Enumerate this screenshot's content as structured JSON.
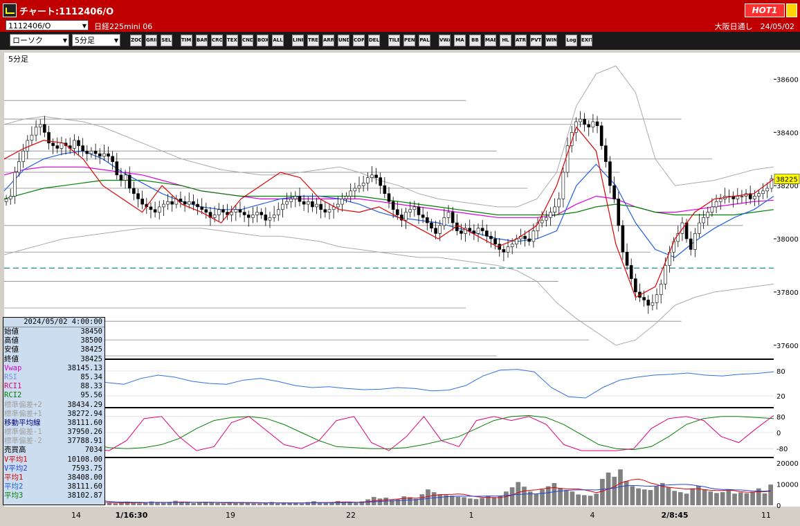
{
  "window": {
    "title": "チャート:1112406/O",
    "hot_label": "HOT1"
  },
  "symbol_bar": {
    "symbol": "1112406/O",
    "instrument": "日経225mini 06",
    "exchange": "大阪日通し",
    "date": "24/05/02"
  },
  "toolbar": {
    "chart_type": "ローソク",
    "period": "5分足",
    "buttons": [
      "ZOOM",
      "GRID",
      "SEL",
      "TIME",
      "BAR",
      "CROSS",
      "TEXT",
      "CNDL",
      "BOX",
      "ALL",
      "LINE",
      "TREND",
      "ARROW",
      "UNDO",
      "COPY",
      "DEL",
      "TILE",
      "PEN",
      "PAL",
      "VWAP",
      "MA",
      "BB",
      "MAE",
      "HL",
      "ATR",
      "PVT",
      "WIN",
      "Log",
      "EXIT"
    ]
  },
  "chart_data": {
    "type": "candlestick",
    "period_label": "5分足",
    "price_axis": {
      "ticks": [
        37600,
        37800,
        38000,
        38200,
        38400,
        38600
      ],
      "range": [
        37550,
        38700
      ],
      "last_price": "38225"
    },
    "x_ticks": [
      "14",
      "1/16:30",
      "19",
      "22",
      "1",
      "4",
      "2/8:45",
      "11"
    ],
    "close": [
      38150,
      38160,
      38250,
      38290,
      38330,
      38370,
      38390,
      38420,
      38430,
      38400,
      38360,
      38350,
      38340,
      38360,
      38350,
      38340,
      38370,
      38350,
      38330,
      38320,
      38330,
      38320,
      38310,
      38320,
      38310,
      38290,
      38240,
      38220,
      38240,
      38190,
      38170,
      38150,
      38130,
      38120,
      38110,
      38100,
      38120,
      38130,
      38140,
      38130,
      38150,
      38140,
      38130,
      38140,
      38130,
      38120,
      38110,
      38100,
      38080,
      38090,
      38110,
      38100,
      38090,
      38100,
      38110,
      38100,
      38090,
      38080,
      38090,
      38100,
      38090,
      38070,
      38080,
      38090,
      38110,
      38130,
      38140,
      38150,
      38160,
      38140,
      38130,
      38140,
      38120,
      38130,
      38110,
      38100,
      38110,
      38120,
      38130,
      38150,
      38160,
      38180,
      38190,
      38200,
      38210,
      38230,
      38240,
      38230,
      38200,
      38170,
      38140,
      38110,
      38090,
      38070,
      38100,
      38110,
      38120,
      38090,
      38080,
      38060,
      38040,
      38020,
      38050,
      38080,
      38100,
      38060,
      38030,
      38020,
      38040,
      38030,
      38020,
      38040,
      38030,
      38010,
      38000,
      37980,
      37960,
      37950,
      37970,
      37980,
      38000,
      38010,
      38000,
      37990,
      38030,
      38060,
      38070,
      38080,
      38100,
      38120,
      38150,
      38250,
      38350,
      38400,
      38440,
      38450,
      38430,
      38420,
      38440,
      38425,
      38350,
      38290,
      38200,
      38150,
      38050,
      37950,
      37900,
      37850,
      37800,
      37780,
      37770,
      37750,
      37760,
      37790,
      37830,
      37900,
      37950,
      37990,
      38020,
      38060,
      38000,
      37960,
      38020,
      38060,
      38080,
      38100,
      38120,
      38140,
      38150,
      38160,
      38160,
      38150,
      38160,
      38160,
      38170,
      38150,
      38160,
      38170,
      38180,
      38190,
      38225
    ],
    "ma1": [
      38300,
      38340,
      38370,
      38360,
      38300,
      38200,
      38150,
      38100,
      38200,
      38130,
      38100,
      38060,
      38150,
      38200,
      38250,
      38230,
      38150,
      38110,
      38100,
      38120,
      38080,
      38040,
      38000,
      38050,
      38010,
      37970,
      38000,
      38050,
      38200,
      38420,
      38330,
      37980,
      37780,
      37820,
      38000,
      38100,
      38150,
      38160,
      38170,
      38225
    ],
    "ma2": [
      38180,
      38260,
      38300,
      38320,
      38330,
      38300,
      38250,
      38210,
      38170,
      38140,
      38120,
      38110,
      38110,
      38130,
      38150,
      38160,
      38160,
      38150,
      38130,
      38100,
      38080,
      38070,
      38060,
      38040,
      38020,
      38000,
      37990,
      38000,
      38030,
      38200,
      38280,
      38200,
      38060,
      37960,
      37930,
      37990,
      38040,
      38080,
      38110,
      38160
    ],
    "ma3": [
      38150,
      38170,
      38190,
      38200,
      38210,
      38220,
      38220,
      38220,
      38210,
      38200,
      38180,
      38170,
      38160,
      38160,
      38160,
      38160,
      38160,
      38160,
      38160,
      38150,
      38140,
      38130,
      38120,
      38110,
      38100,
      38090,
      38090,
      38090,
      38090,
      38100,
      38120,
      38130,
      38120,
      38100,
      38090,
      38090,
      38090,
      38090,
      38100,
      38110
    ],
    "vwap": [
      38240,
      38260,
      38270,
      38270,
      38270,
      38260,
      38250,
      38240,
      38220,
      38200,
      38180,
      38170,
      38160,
      38150,
      38150,
      38150,
      38150,
      38150,
      38150,
      38140,
      38130,
      38120,
      38110,
      38100,
      38090,
      38080,
      38080,
      38080,
      38090,
      38130,
      38160,
      38150,
      38120,
      38100,
      38100,
      38110,
      38120,
      38130,
      38140,
      38145
    ],
    "bb_upper": [
      38430,
      38450,
      38460,
      38450,
      38440,
      38420,
      38390,
      38360,
      38330,
      38300,
      38280,
      38260,
      38250,
      38240,
      38240,
      38250,
      38260,
      38270,
      38250,
      38220,
      38200,
      38170,
      38150,
      38140,
      38130,
      38120,
      38120,
      38150,
      38250,
      38500,
      38620,
      38650,
      38550,
      38300,
      38200,
      38210,
      38220,
      38240,
      38260,
      38270
    ],
    "bb_lower": [
      37940,
      37960,
      37980,
      38000,
      38010,
      38020,
      38030,
      38040,
      38040,
      38040,
      38040,
      38030,
      38020,
      38010,
      38010,
      38000,
      37990,
      37970,
      37960,
      37950,
      37940,
      37930,
      37930,
      37920,
      37910,
      37900,
      37880,
      37840,
      37760,
      37700,
      37650,
      37600,
      37620,
      37680,
      37750,
      37780,
      37800,
      37810,
      37820,
      37830
    ],
    "horizontal_lines": [
      38520,
      38450,
      38430,
      38330,
      38300,
      38250,
      38190,
      38050,
      37950,
      37840,
      37740,
      37690,
      37620,
      37560
    ],
    "dashed_line": 37890,
    "oscillator1": {
      "levels": [
        80.0,
        20.0
      ],
      "rsi": [
        30,
        29,
        35,
        45,
        55,
        60,
        52,
        48,
        62,
        70,
        65,
        55,
        50,
        48,
        58,
        62,
        55,
        45,
        40,
        42,
        38,
        35,
        36,
        40,
        38,
        32,
        34,
        45,
        68,
        82,
        84,
        78,
        40,
        18,
        15,
        40,
        58,
        65,
        70,
        72,
        75,
        70,
        68,
        72,
        74,
        78
      ]
    },
    "oscillator2": {
      "levels": [
        80.0,
        0.0,
        -80.0
      ],
      "rci1": [
        -60,
        -20,
        60,
        80,
        10,
        -80,
        -90,
        -40,
        70,
        80,
        -20,
        -90,
        -70,
        50,
        80,
        10,
        -60,
        -80,
        -40,
        60,
        80,
        -50,
        -90,
        -20,
        80,
        -40,
        -70,
        60,
        80,
        60,
        80,
        40,
        -60,
        -90,
        -90,
        -90,
        -80,
        20,
        70,
        80,
        60,
        -20,
        -50,
        20,
        85
      ],
      "rci2": [
        -70,
        -75,
        -70,
        -60,
        -50,
        -60,
        -75,
        -80,
        -75,
        -60,
        -30,
        20,
        60,
        75,
        80,
        70,
        40,
        0,
        -40,
        -70,
        -75,
        -80,
        -80,
        -75,
        -60,
        -40,
        -20,
        20,
        60,
        80,
        85,
        75,
        40,
        -10,
        -60,
        -80,
        -85,
        -70,
        -20,
        40,
        70,
        80,
        80,
        75,
        70
      ]
    },
    "volume": {
      "ticks": [
        0,
        10000,
        20000
      ],
      "bars": [
        2500,
        4500,
        6500,
        3500,
        2500,
        2000,
        2500,
        1500,
        2000,
        1800,
        1500,
        1400,
        1200,
        1500,
        1800,
        1200,
        1000,
        1100,
        900,
        1300,
        1700,
        1200,
        900,
        1400,
        1800,
        1300,
        1100,
        1600,
        2100,
        1500,
        1200,
        1000,
        1300,
        1500,
        1200,
        1000,
        900,
        1100,
        1300,
        1500,
        1100,
        900,
        800,
        1200,
        1500,
        900,
        1100,
        1300,
        1000,
        800,
        1500,
        1900,
        1300,
        1100,
        1500,
        2000,
        1600,
        1300,
        1100,
        1800,
        2800,
        3900,
        3200,
        3600,
        2500,
        2800,
        4200,
        3800,
        3000,
        5200,
        7500,
        6200,
        5200,
        4800,
        4500,
        4000,
        3800,
        3200,
        2900,
        3500,
        4200,
        3800,
        4500,
        6500,
        8500,
        11000,
        8800,
        6500,
        5400,
        7500,
        9000,
        10500,
        8200,
        7200,
        6500,
        5100,
        4800,
        4500,
        5500,
        12500,
        15500,
        13500,
        17000,
        11500,
        9000,
        8000,
        7500,
        7200,
        9000,
        10500,
        8500,
        6800,
        6200,
        5500,
        8000,
        9200,
        7500,
        6500,
        5800,
        6200,
        7500,
        5500,
        6100,
        5700,
        6400,
        8000,
        5600,
        9800
      ]
    }
  },
  "info_panel": {
    "date": "2024/05/02 4:00:00",
    "rows": [
      {
        "label": "始値",
        "value": "38450",
        "color": "#000000"
      },
      {
        "label": "高値",
        "value": "38500",
        "color": "#000000"
      },
      {
        "label": "安値",
        "value": "38425",
        "color": "#000000"
      },
      {
        "label": "終値",
        "value": "38425",
        "color": "#000000"
      },
      {
        "label": "Vwap",
        "value": "38145.13",
        "color": "#e000e0"
      },
      {
        "label": "RSI",
        "value": "85.34",
        "color": "#7a8ce0"
      },
      {
        "label": "RCI1",
        "value": "88.33",
        "color": "#e0007a"
      },
      {
        "label": "RCI2",
        "value": "95.56",
        "color": "#008000"
      },
      {
        "label": "標準偏差+2",
        "value": "38434.29",
        "color": "#a0a0a0"
      },
      {
        "label": "標準偏差+1",
        "value": "38272.94",
        "color": "#a0a0a0"
      },
      {
        "label": "移動平均線",
        "value": "38111.60",
        "color": "#000080"
      },
      {
        "label": "標準偏差-1",
        "value": "37950.26",
        "color": "#a0a0a0"
      },
      {
        "label": "標準偏差-2",
        "value": "37788.91",
        "color": "#a0a0a0"
      },
      {
        "label": "売買高",
        "value": "7034",
        "color": "#000000"
      },
      {
        "label": "V平均1",
        "value": "10108.00",
        "color": "#e00000"
      },
      {
        "label": "V平均2",
        "value": "7593.75",
        "color": "#2040e0"
      },
      {
        "label": "平均1",
        "value": "38408.00",
        "color": "#e00000"
      },
      {
        "label": "平均2",
        "value": "38111.60",
        "color": "#2060e0"
      },
      {
        "label": "平均3",
        "value": "38102.87",
        "color": "#008000"
      }
    ]
  }
}
